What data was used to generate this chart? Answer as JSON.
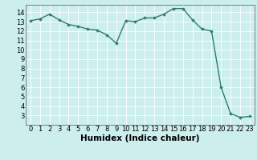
{
  "x": [
    0,
    1,
    2,
    3,
    4,
    5,
    6,
    7,
    8,
    9,
    10,
    11,
    12,
    13,
    14,
    15,
    16,
    17,
    18,
    19,
    20,
    21,
    22,
    23
  ],
  "y": [
    13.1,
    13.3,
    13.8,
    13.2,
    12.7,
    12.5,
    12.2,
    12.1,
    11.6,
    10.7,
    13.1,
    13.0,
    13.4,
    13.4,
    13.8,
    14.4,
    14.4,
    13.2,
    12.2,
    12.0,
    6.0,
    3.2,
    2.8,
    2.9
  ],
  "line_color": "#2e7d6e",
  "marker": "D",
  "marker_size": 1.8,
  "line_width": 1.0,
  "xlabel": "Humidex (Indice chaleur)",
  "xlim": [
    -0.5,
    23.5
  ],
  "ylim": [
    2.0,
    14.8
  ],
  "yticks": [
    3,
    4,
    5,
    6,
    7,
    8,
    9,
    10,
    11,
    12,
    13,
    14
  ],
  "xticks": [
    0,
    1,
    2,
    3,
    4,
    5,
    6,
    7,
    8,
    9,
    10,
    11,
    12,
    13,
    14,
    15,
    16,
    17,
    18,
    19,
    20,
    21,
    22,
    23
  ],
  "bg_color": "#cceeed",
  "grid_color": "#ffffff",
  "tick_label_fontsize": 6.0,
  "xlabel_fontsize": 7.5,
  "xlabel_bold": true
}
